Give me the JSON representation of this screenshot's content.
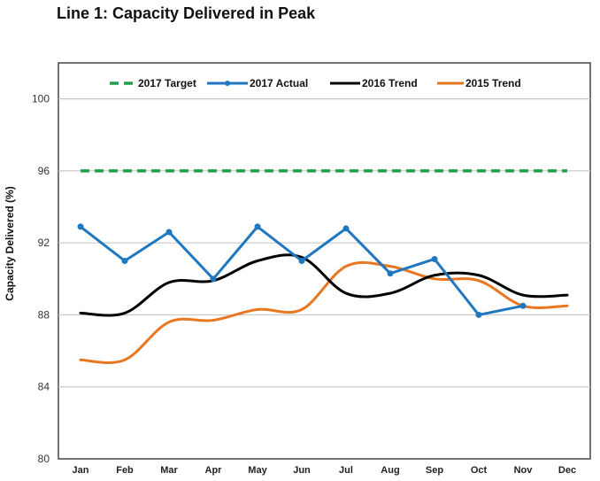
{
  "chart_data": {
    "type": "line",
    "title": "Line 1: Capacity Delivered in Peak",
    "xlabel": "",
    "ylabel": "Capacity Delivered (%)",
    "ylim": [
      80,
      102
    ],
    "yticks": [
      80,
      84,
      88,
      92,
      96,
      100
    ],
    "ytick_labels": [
      "80",
      "84",
      "88",
      "92",
      "96",
      "100"
    ],
    "grid": true,
    "legend_position": "top",
    "categories": [
      "Jan",
      "Feb",
      "Mar",
      "Apr",
      "May",
      "Jun",
      "Jul",
      "Aug",
      "Sep",
      "Oct",
      "Nov",
      "Dec"
    ],
    "series": [
      {
        "name": "2017 Target",
        "color": "#21a04a",
        "style": "dashed",
        "smooth": false,
        "markers": false,
        "values": [
          96,
          96,
          96,
          96,
          96,
          96,
          96,
          96,
          96,
          96,
          96,
          96
        ]
      },
      {
        "name": "2017 Actual",
        "color": "#1f77c0",
        "style": "solid",
        "smooth": false,
        "markers": true,
        "values": [
          92.9,
          91.0,
          92.6,
          90.0,
          92.9,
          91.0,
          92.8,
          90.3,
          91.1,
          88.0,
          88.5,
          null
        ]
      },
      {
        "name": "2016 Trend",
        "color": "#000000",
        "style": "solid",
        "smooth": true,
        "markers": false,
        "values": [
          88.1,
          88.1,
          89.8,
          89.9,
          91.0,
          91.2,
          89.2,
          89.2,
          90.2,
          90.2,
          89.1,
          89.1
        ]
      },
      {
        "name": "2015 Trend",
        "color": "#e87722",
        "style": "solid",
        "smooth": true,
        "markers": false,
        "values": [
          85.5,
          85.5,
          87.6,
          87.7,
          88.3,
          88.3,
          90.7,
          90.7,
          90.0,
          89.9,
          88.5,
          88.5
        ]
      }
    ]
  }
}
